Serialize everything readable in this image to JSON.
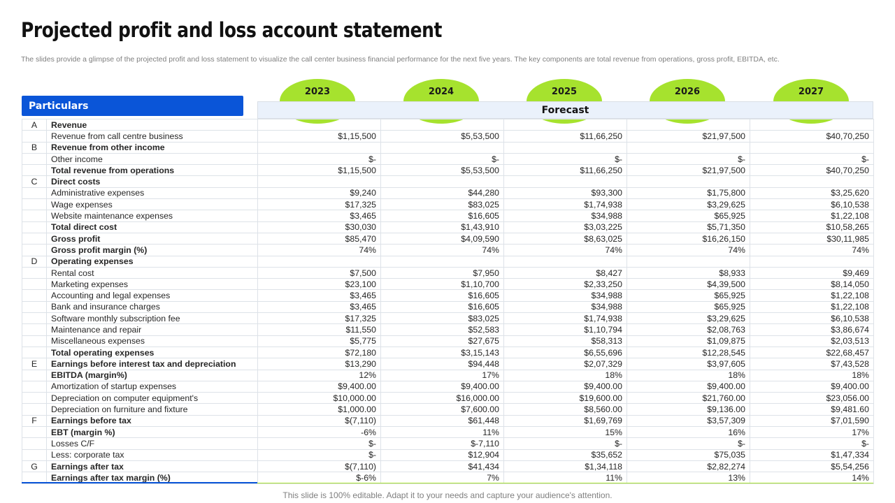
{
  "title": "Projected profit and loss account statement",
  "subtitle": "The slides provide a glimpse of the projected profit and loss statement to visualize the call center business financial performance for the next five years. The key components are total revenue from operations, gross profit, EBITDA, etc.",
  "header": {
    "particulars": "Particulars",
    "forecast": "Forecast",
    "years": [
      "2023",
      "2024",
      "2025",
      "2026",
      "2027"
    ]
  },
  "colors": {
    "accent_blue": "#0a55d8",
    "accent_green": "#a6e22e",
    "forecast_band": "#eaf1fb"
  },
  "rows": [
    {
      "code": "A",
      "label": "Revenue",
      "bold": true,
      "values": [
        "",
        "",
        "",
        "",
        ""
      ]
    },
    {
      "code": "",
      "label": "Revenue  from call centre business",
      "bold": false,
      "values": [
        "$1,15,500",
        "$5,53,500",
        "$11,66,250",
        "$21,97,500",
        "$40,70,250"
      ]
    },
    {
      "code": "B",
      "label": "Revenue from other income",
      "bold": true,
      "values": [
        "",
        "",
        "",
        "",
        ""
      ]
    },
    {
      "code": "",
      "label": "Other income",
      "bold": false,
      "values": [
        "$-",
        "$-",
        "$-",
        "$-",
        "$-"
      ]
    },
    {
      "code": "",
      "label": "Total revenue from operations",
      "bold": true,
      "values": [
        "$1,15,500",
        "$5,53,500",
        "$11,66,250",
        "$21,97,500",
        "$40,70,250"
      ]
    },
    {
      "code": "C",
      "label": "Direct costs",
      "bold": true,
      "values": [
        "",
        "",
        "",
        "",
        ""
      ]
    },
    {
      "code": "",
      "label": "Administrative  expenses",
      "bold": false,
      "values": [
        "$9,240",
        "$44,280",
        "$93,300",
        "$1,75,800",
        "$3,25,620"
      ]
    },
    {
      "code": "",
      "label": "Wage expenses",
      "bold": false,
      "values": [
        "$17,325",
        "$83,025",
        "$1,74,938",
        "$3,29,625",
        "$6,10,538"
      ]
    },
    {
      "code": "",
      "label": "Website maintenance expenses",
      "bold": false,
      "values": [
        "$3,465",
        "$16,605",
        "$34,988",
        "$65,925",
        "$1,22,108"
      ]
    },
    {
      "code": "",
      "label": " Total direct cost",
      "bold": true,
      "values": [
        "$30,030",
        "$1,43,910",
        "$3,03,225",
        "$5,71,350",
        "$10,58,265"
      ]
    },
    {
      "code": "",
      "label": "Gross  profit",
      "bold": true,
      "values": [
        "$85,470",
        "$4,09,590",
        "$8,63,025",
        "$16,26,150",
        "$30,11,985"
      ]
    },
    {
      "code": "",
      "label": "Gross  profit margin (%)",
      "bold": true,
      "values": [
        "74%",
        "74%",
        "74%",
        "74%",
        "74%"
      ]
    },
    {
      "code": "D",
      "label": "Operating expenses",
      "bold": true,
      "values": [
        "",
        "",
        "",
        "",
        ""
      ]
    },
    {
      "code": "",
      "label": "Rental cost",
      "bold": false,
      "values": [
        "$7,500",
        "$7,950",
        "$8,427",
        "$8,933",
        "$9,469"
      ]
    },
    {
      "code": "",
      "label": "Marketing expenses",
      "bold": false,
      "values": [
        "$23,100",
        "$1,10,700",
        "$2,33,250",
        "$4,39,500",
        "$8,14,050"
      ]
    },
    {
      "code": "",
      "label": "Accounting and legal expenses",
      "bold": false,
      "values": [
        "$3,465",
        "$16,605",
        "$34,988",
        "$65,925",
        "$1,22,108"
      ]
    },
    {
      "code": "",
      "label": "Bank and insurance  charges",
      "bold": false,
      "values": [
        "$3,465",
        "$16,605",
        "$34,988",
        "$65,925",
        "$1,22,108"
      ]
    },
    {
      "code": "",
      "label": "Software  monthly subscription fee",
      "bold": false,
      "values": [
        "$17,325",
        "$83,025",
        "$1,74,938",
        "$3,29,625",
        "$6,10,538"
      ]
    },
    {
      "code": "",
      "label": "Maintenance and repair",
      "bold": false,
      "values": [
        "$11,550",
        "$52,583",
        "$1,10,794",
        "$2,08,763",
        "$3,86,674"
      ]
    },
    {
      "code": "",
      "label": "Miscellaneous  expenses",
      "bold": false,
      "values": [
        "$5,775",
        "$27,675",
        "$58,313",
        "$1,09,875",
        "$2,03,513"
      ]
    },
    {
      "code": "",
      "label": "Total operating expenses",
      "bold": true,
      "values": [
        "$72,180",
        "$3,15,143",
        "$6,55,696",
        "$12,28,545",
        "$22,68,457"
      ]
    },
    {
      "code": "E",
      "label": "Earnings before interest tax and depreciation",
      "bold": true,
      "values": [
        "$13,290",
        "$94,448",
        "$2,07,329",
        "$3,97,605",
        "$7,43,528"
      ]
    },
    {
      "code": "",
      "label": "EBITDA  (margin%)",
      "bold": true,
      "values": [
        "12%",
        "17%",
        "18%",
        "18%",
        "18%"
      ]
    },
    {
      "code": "",
      "label": "Amortization of startup expenses",
      "bold": false,
      "values": [
        "$9,400.00",
        "$9,400.00",
        "$9,400.00",
        "$9,400.00",
        "$9,400.00"
      ]
    },
    {
      "code": "",
      "label": "Depreciation  on computer equipment's",
      "bold": false,
      "values": [
        "$10,000.00",
        "$16,000.00",
        "$19,600.00",
        "$21,760.00",
        "$23,056.00"
      ]
    },
    {
      "code": "",
      "label": "Depreciation  on furniture  and fixture",
      "bold": false,
      "values": [
        "$1,000.00",
        "$7,600.00",
        "$8,560.00",
        "$9,136.00",
        "$9,481.60"
      ]
    },
    {
      "code": "F",
      "label": "Earnings before tax",
      "bold": true,
      "values": [
        "$(7,110)",
        "$61,448",
        "$1,69,769",
        "$3,57,309",
        "$7,01,590"
      ]
    },
    {
      "code": "",
      "label": "EBT (margin %)",
      "bold": true,
      "values": [
        "-6%",
        "11%",
        "15%",
        "16%",
        "17%"
      ]
    },
    {
      "code": "",
      "label": "Losses C/F",
      "bold": false,
      "values": [
        "$-",
        "$-7,110",
        "$-",
        "$-",
        "$-"
      ]
    },
    {
      "code": "",
      "label": "Less: corporate  tax",
      "bold": false,
      "values": [
        "$-",
        "$12,904",
        "$35,652",
        "$75,035",
        "$1,47,334"
      ]
    },
    {
      "code": "G",
      "label": "Earnings after tax",
      "bold": true,
      "values": [
        "$(7,110)",
        "$41,434",
        "$1,34,118",
        "$2,82,274",
        "$5,54,256"
      ]
    },
    {
      "code": "",
      "label": "Earnings after tax margin (%)",
      "bold": true,
      "values": [
        "$-6%",
        "7%",
        "11%",
        "13%",
        "14%"
      ]
    }
  ],
  "footer": "This slide is 100% editable. Adapt it to your needs and capture your audience's attention."
}
